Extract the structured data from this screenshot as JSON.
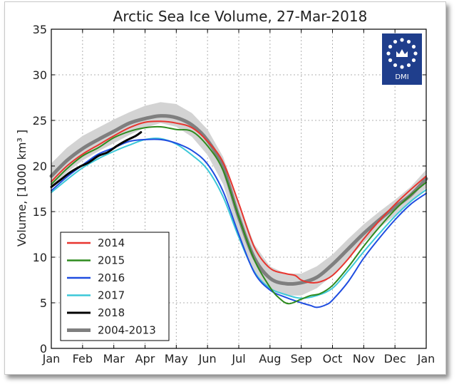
{
  "chart_data": {
    "type": "line",
    "title": "Arctic Sea Ice Volume, 27-Mar-2018",
    "ylabel": "Volume, [1000 km³ ]",
    "xlabel": "",
    "ylim": [
      0,
      35
    ],
    "yticks": [
      0,
      5,
      10,
      15,
      20,
      25,
      30,
      35
    ],
    "xticks": [
      "Jan",
      "Feb",
      "Mar",
      "Apr",
      "May",
      "Jun",
      "Jul",
      "Aug",
      "Sep",
      "Oct",
      "Nov",
      "Dec",
      "Jan"
    ],
    "grid": true,
    "legend_position": "lower-left",
    "x_unit": "month (0 = 1 Jan, 12 = 1 Jan next year)",
    "logo": {
      "text": "DMI",
      "color": "#1f3e8c"
    },
    "band": {
      "color": "#d3d3d3",
      "x": [
        0,
        0.5,
        1,
        1.5,
        2,
        2.5,
        3,
        3.5,
        4,
        4.5,
        5,
        5.5,
        6,
        6.5,
        7,
        7.5,
        8,
        8.5,
        9,
        9.5,
        10,
        10.5,
        11,
        11.5,
        12
      ],
      "upper": [
        20.3,
        22.0,
        23.3,
        24.2,
        25.1,
        25.9,
        26.6,
        27.0,
        26.8,
        25.8,
        24.0,
        21.0,
        16.0,
        11.4,
        9.0,
        8.2,
        8.2,
        9.0,
        10.3,
        12.0,
        13.6,
        15.0,
        16.3,
        17.7,
        19.6
      ],
      "lower": [
        17.6,
        19.3,
        20.6,
        21.6,
        22.5,
        23.4,
        24.2,
        24.7,
        24.3,
        23.2,
        21.2,
        18.0,
        12.5,
        8.4,
        6.4,
        5.8,
        5.8,
        6.6,
        8.0,
        9.8,
        11.6,
        13.2,
        14.6,
        16.0,
        17.6
      ]
    },
    "series": [
      {
        "name": "2004-2013",
        "color": "#7f7f7f",
        "width": 5,
        "x": [
          0,
          0.5,
          1,
          1.5,
          2,
          2.5,
          3,
          3.5,
          4,
          4.5,
          5,
          5.5,
          6,
          6.5,
          7,
          7.5,
          8,
          8.5,
          9,
          9.5,
          10,
          10.5,
          11,
          11.5,
          12
        ],
        "y": [
          18.9,
          20.6,
          21.9,
          22.9,
          23.8,
          24.7,
          25.2,
          25.5,
          25.3,
          24.5,
          22.8,
          19.8,
          14.4,
          9.9,
          7.7,
          7.1,
          7.2,
          7.8,
          9.2,
          10.9,
          12.6,
          14.1,
          15.5,
          16.8,
          18.6
        ]
      },
      {
        "name": "2014",
        "color": "#e8352f",
        "width": 2,
        "x": [
          0,
          0.5,
          1,
          1.5,
          2,
          2.5,
          3,
          3.5,
          4,
          4.5,
          5,
          5.5,
          6,
          6.5,
          7,
          7.5,
          7.8,
          8,
          8.3,
          8.6,
          9,
          9.5,
          10,
          10.5,
          11,
          11.5,
          12
        ],
        "y": [
          18.3,
          20.0,
          21.3,
          22.3,
          23.3,
          24.2,
          24.8,
          24.9,
          24.7,
          24.2,
          22.7,
          20.4,
          15.9,
          11.1,
          8.8,
          8.2,
          8.0,
          7.5,
          7.2,
          7.3,
          8.0,
          9.8,
          12.0,
          14.0,
          15.8,
          17.4,
          18.9
        ]
      },
      {
        "name": "2015",
        "color": "#2e8b1e",
        "width": 2,
        "x": [
          0,
          0.5,
          1,
          1.5,
          2,
          2.5,
          3,
          3.5,
          4,
          4.5,
          5,
          5.5,
          6,
          6.5,
          7,
          7.3,
          7.6,
          8,
          8.3,
          8.6,
          9,
          9.5,
          10,
          10.5,
          11,
          11.5,
          12
        ],
        "y": [
          18.0,
          19.7,
          21.1,
          22.0,
          23.1,
          23.8,
          24.2,
          24.3,
          24.0,
          23.8,
          22.2,
          19.5,
          14.4,
          9.7,
          6.7,
          5.5,
          4.9,
          5.4,
          5.8,
          6.0,
          6.9,
          8.9,
          11.2,
          13.3,
          15.2,
          16.8,
          18.2
        ]
      },
      {
        "name": "2016",
        "color": "#1f4de0",
        "width": 2,
        "x": [
          0,
          0.5,
          1,
          1.5,
          2,
          2.5,
          3,
          3.5,
          4,
          4.5,
          5,
          5.5,
          6,
          6.5,
          7,
          7.5,
          8,
          8.3,
          8.5,
          8.8,
          9,
          9.5,
          10,
          10.5,
          11,
          11.5,
          12
        ],
        "y": [
          17.3,
          18.8,
          20.1,
          21.3,
          22.0,
          22.7,
          22.9,
          22.9,
          22.5,
          21.7,
          20.2,
          17.2,
          12.5,
          8.3,
          6.4,
          5.6,
          5.0,
          4.7,
          4.5,
          4.8,
          5.3,
          7.3,
          9.9,
          12.1,
          14.1,
          15.8,
          17.0
        ]
      },
      {
        "name": "2017",
        "color": "#3cc8d8",
        "width": 2,
        "x": [
          0,
          0.5,
          1,
          1.5,
          2,
          2.5,
          3,
          3.5,
          4,
          4.5,
          5,
          5.5,
          6,
          6.5,
          7,
          7.5,
          8,
          8.5,
          9,
          9.5,
          10,
          10.5,
          11,
          11.5,
          12
        ],
        "y": [
          17.1,
          18.5,
          19.8,
          20.8,
          21.6,
          22.3,
          22.9,
          23.0,
          22.4,
          21.2,
          19.6,
          16.6,
          12.2,
          8.4,
          6.6,
          5.9,
          5.5,
          5.8,
          6.6,
          8.5,
          10.6,
          12.6,
          14.5,
          16.1,
          17.4
        ]
      },
      {
        "name": "2018",
        "color": "#000000",
        "width": 3,
        "x": [
          0,
          0.3,
          0.6,
          0.9,
          1.2,
          1.5,
          1.8,
          2.1,
          2.4,
          2.7,
          2.87
        ],
        "y": [
          17.7,
          18.5,
          19.3,
          19.9,
          20.4,
          21.1,
          21.5,
          22.2,
          22.8,
          23.3,
          23.7
        ]
      }
    ]
  }
}
